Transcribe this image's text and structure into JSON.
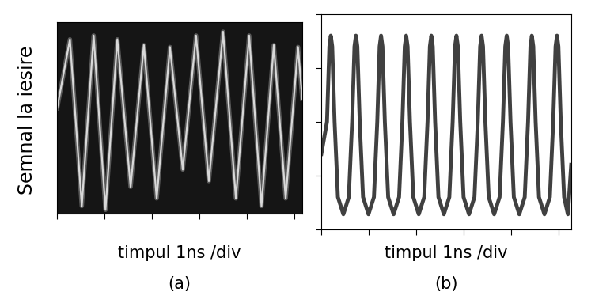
{
  "chart_data": [
    {
      "type": "line",
      "title": "(a)",
      "x_label": "timpul 1ns /div",
      "y_label": "Semnal la iesire",
      "color": "#d8d8d8",
      "tick_labels": false,
      "x": [
        0,
        0.27,
        0.52,
        0.77,
        1.02,
        1.27,
        1.55,
        1.83,
        2.1,
        2.38,
        2.65,
        2.93,
        3.2,
        3.5,
        3.77,
        4.05,
        4.31,
        4.57,
        4.82,
        5.08,
        5.17
      ],
      "values": [
        0.55,
        0.91,
        0.04,
        0.93,
        0.02,
        0.91,
        0.14,
        0.88,
        0.08,
        0.87,
        0.23,
        0.93,
        0.17,
        0.95,
        0.08,
        0.93,
        0.04,
        0.88,
        0.08,
        0.87,
        0.6
      ],
      "xlim": [
        0,
        5.17
      ],
      "ylim": [
        0,
        1
      ],
      "xticks": [
        0,
        1,
        2,
        3,
        4,
        5
      ],
      "yticks": []
    },
    {
      "type": "line",
      "title": "(b)",
      "x_label": "timpul 1ns /div",
      "color": "#404040",
      "tick_labels": false,
      "x": [
        0.0,
        0.12,
        0.17,
        0.2,
        0.23,
        0.28,
        0.35,
        0.465,
        0.58,
        0.65,
        0.7,
        0.73,
        0.76,
        0.81,
        0.88,
        0.995,
        1.11,
        1.18,
        1.23,
        1.26,
        1.29,
        1.34,
        1.41,
        1.525,
        1.64,
        1.71,
        1.76,
        1.79,
        1.82,
        1.87,
        1.94,
        2.055,
        2.17,
        2.24,
        2.29,
        2.32,
        2.35,
        2.4,
        2.47,
        2.585,
        2.7,
        2.77,
        2.82,
        2.85,
        2.88,
        2.93,
        3.0,
        3.115,
        3.23,
        3.3,
        3.35,
        3.38,
        3.41,
        3.46,
        3.53,
        3.645,
        3.76,
        3.83,
        3.88,
        3.91,
        3.94,
        3.99,
        4.06,
        4.175,
        4.29,
        4.36,
        4.41,
        4.44,
        4.47,
        4.52,
        4.59,
        4.705,
        4.82,
        4.89,
        4.94,
        4.97,
        5.0,
        5.05,
        5.12,
        5.2,
        5.27
      ],
      "values": [
        0.35,
        0.5,
        0.85,
        0.9,
        0.85,
        0.5,
        0.15,
        0.07,
        0.15,
        0.5,
        0.85,
        0.9,
        0.85,
        0.5,
        0.15,
        0.07,
        0.15,
        0.5,
        0.85,
        0.9,
        0.85,
        0.5,
        0.15,
        0.07,
        0.15,
        0.5,
        0.85,
        0.9,
        0.85,
        0.5,
        0.15,
        0.07,
        0.15,
        0.5,
        0.85,
        0.9,
        0.85,
        0.5,
        0.15,
        0.07,
        0.15,
        0.5,
        0.85,
        0.9,
        0.85,
        0.5,
        0.15,
        0.07,
        0.15,
        0.5,
        0.85,
        0.9,
        0.85,
        0.5,
        0.15,
        0.07,
        0.15,
        0.5,
        0.85,
        0.9,
        0.85,
        0.5,
        0.15,
        0.07,
        0.15,
        0.5,
        0.85,
        0.9,
        0.85,
        0.5,
        0.15,
        0.07,
        0.15,
        0.5,
        0.85,
        0.9,
        0.85,
        0.5,
        0.15,
        0.07,
        0.3
      ],
      "xlim": [
        0,
        5.27
      ],
      "ylim": [
        0,
        1
      ],
      "xticks": [
        0,
        1,
        2,
        3,
        4,
        5
      ],
      "yticks": [
        0,
        0.25,
        0.5,
        0.75,
        1
      ]
    }
  ]
}
